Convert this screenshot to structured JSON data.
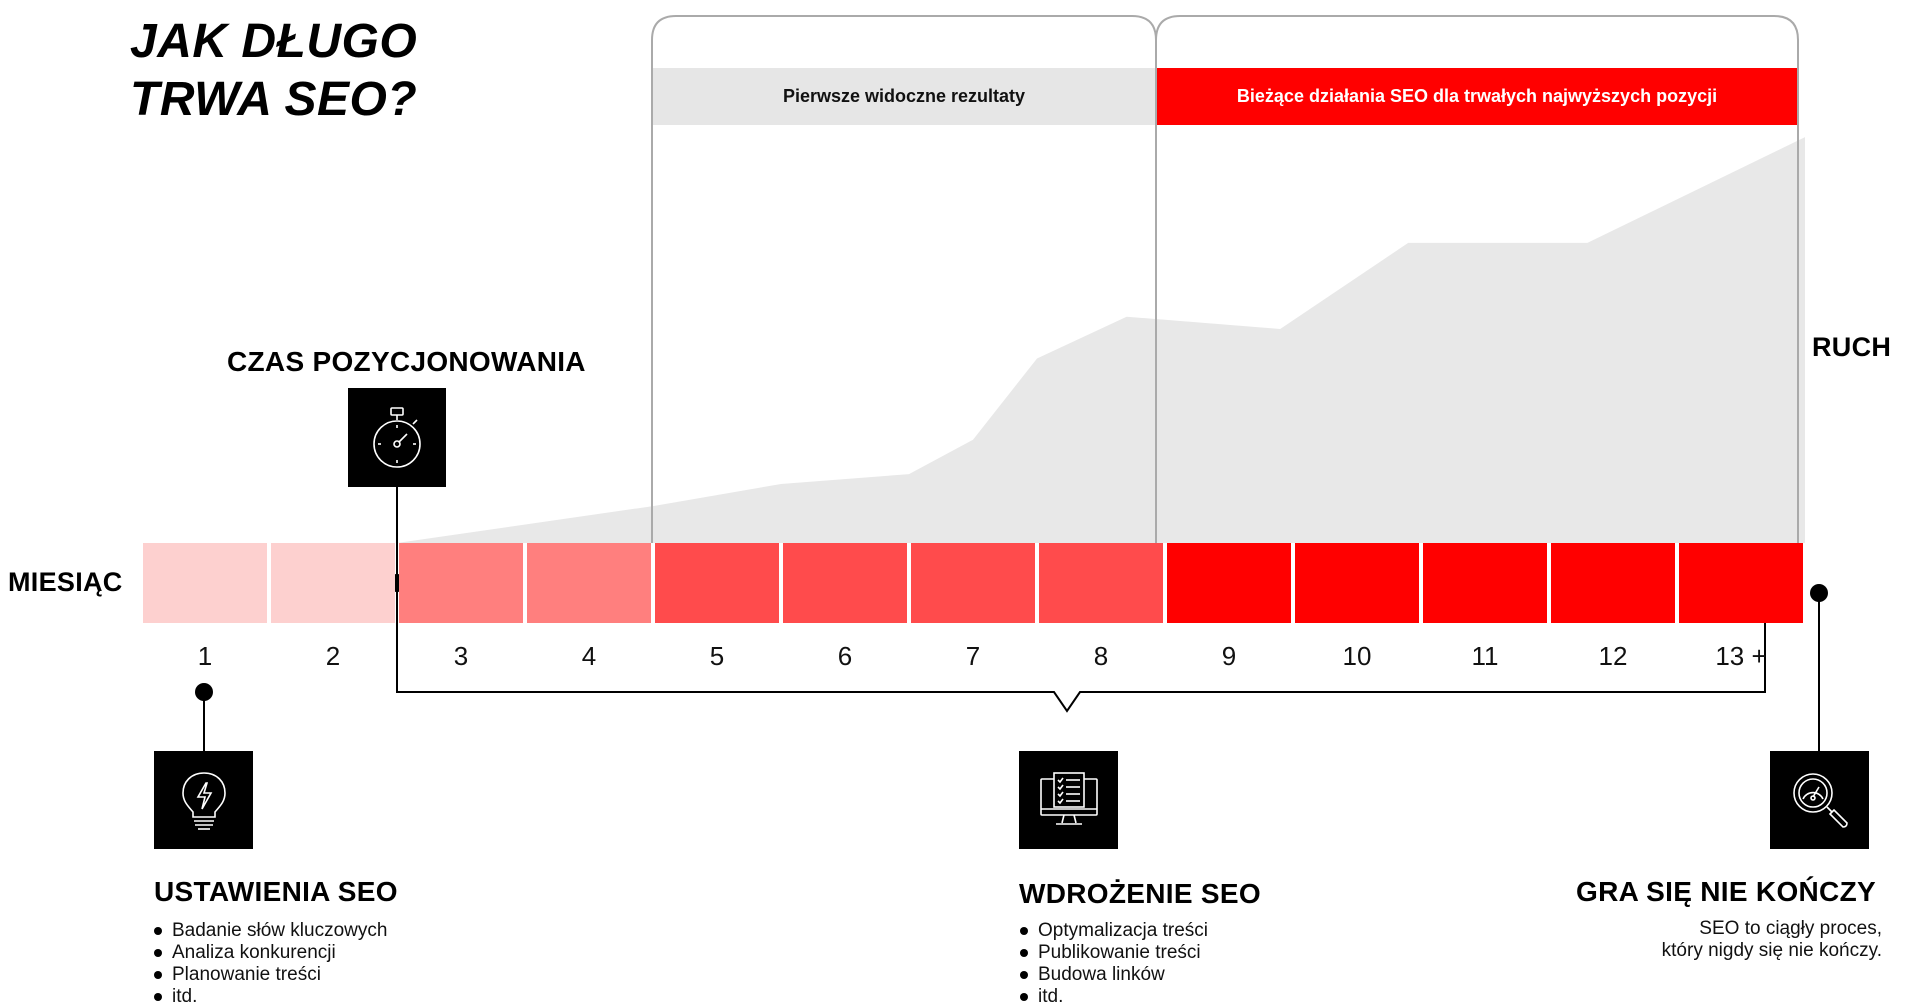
{
  "title": {
    "line1": "JAK DŁUGO",
    "line2": "TRWA SEO?"
  },
  "axis": {
    "months_label": "MIESIĄC",
    "traffic_label": "RUCH"
  },
  "timing_label": "CZAS POZYCJONOWANIA",
  "banners": {
    "first_results": "Pierwsze widoczne rezultaty",
    "ongoing": "Bieżące działania SEO dla trwałych najwyższych pozycji"
  },
  "months": [
    {
      "label": "1",
      "color": "#fdd0cf"
    },
    {
      "label": "2",
      "color": "#fdd0cf"
    },
    {
      "label": "3",
      "color": "#ff7f7e"
    },
    {
      "label": "4",
      "color": "#ff7f7e"
    },
    {
      "label": "5",
      "color": "#ff4b4c"
    },
    {
      "label": "6",
      "color": "#ff4b4c"
    },
    {
      "label": "7",
      "color": "#ff4b4c"
    },
    {
      "label": "8",
      "color": "#ff4b4c"
    },
    {
      "label": "9",
      "color": "#ff0000"
    },
    {
      "label": "10",
      "color": "#ff0000"
    },
    {
      "label": "11",
      "color": "#ff0000"
    },
    {
      "label": "12",
      "color": "#ff0000"
    },
    {
      "label": "13 +",
      "color": "#ff0000"
    }
  ],
  "traffic_curve": {
    "x_month": [
      2.5,
      4.5,
      5.5,
      6.5,
      7.0,
      7.5,
      8.2,
      9.4,
      10.4,
      11.8,
      13.5
    ],
    "y_level": [
      0.0,
      0.15,
      0.24,
      0.28,
      0.42,
      0.75,
      0.92,
      0.87,
      1.22,
      1.22,
      1.65
    ]
  },
  "sections": {
    "setup": {
      "title": "USTAWIENIA SEO",
      "items": [
        "Badanie słów kluczowych",
        "Analiza konkurencji",
        "Planowanie treści",
        "itd."
      ]
    },
    "implementation": {
      "title": "WDROŻENIE SEO",
      "items": [
        "Optymalizacja treści",
        "Publikowanie treści",
        "Budowa linków",
        "itd."
      ]
    },
    "endless": {
      "title": "GRA SIĘ NIE KOŃCZY",
      "text_line1": "SEO to ciągły proces,",
      "text_line2": "który nigdy się nie kończy."
    }
  },
  "icons": {
    "timer": "stopwatch-icon",
    "setup": "lightbulb-icon",
    "implementation": "monitor-checklist-icon",
    "endless": "magnifier-gauge-icon"
  },
  "colors": {
    "accent": "#ff0000",
    "gray_area": "#e8e8e8",
    "banner_gray": "#e6e6e6"
  }
}
